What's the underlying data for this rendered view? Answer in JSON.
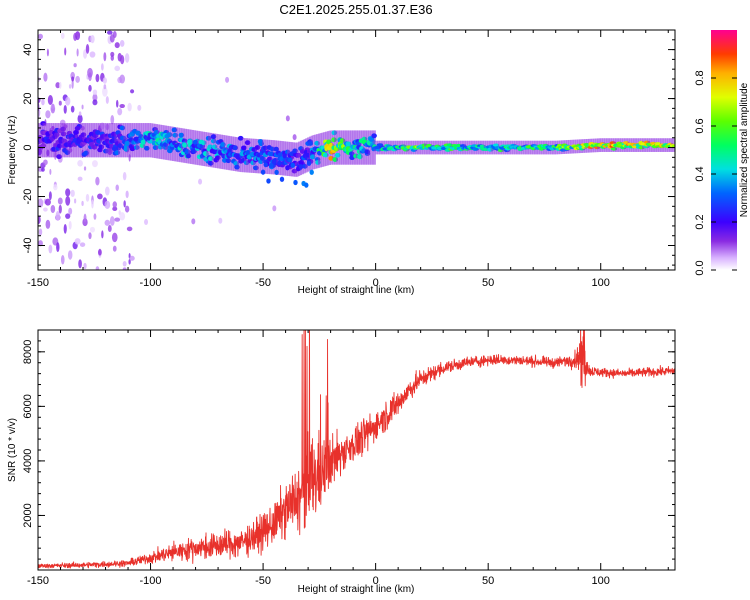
{
  "title": "C2E1.2025.255.01.37.E36",
  "chart_data": [
    {
      "type": "heatmap",
      "name": "spectrogram",
      "xlabel": "Height of straight line (km)",
      "ylabel": "Frequency (Hz)",
      "xlim": [
        -150,
        133
      ],
      "ylim": [
        -50,
        48
      ],
      "xticks": [
        -150,
        -100,
        -50,
        0,
        50,
        100
      ],
      "xtick_labels": [
        "-150",
        "-100",
        "-50",
        "0",
        "50",
        "100"
      ],
      "yticks": [
        -40,
        -20,
        0,
        20,
        40
      ],
      "ytick_labels": [
        "-40",
        "-20",
        "0",
        "20",
        "40"
      ],
      "ridge": {
        "x": [
          -150,
          -120,
          -100,
          -80,
          -60,
          -45,
          -35,
          -28,
          -20,
          -10,
          0,
          20,
          50,
          80,
          100,
          133
        ],
        "freq": [
          3,
          3,
          3,
          0,
          -3,
          -4,
          -5,
          -2,
          0,
          0,
          0,
          0,
          0,
          0,
          1,
          1
        ],
        "peak_amplitude": [
          0.25,
          0.3,
          0.5,
          0.45,
          0.4,
          0.35,
          0.3,
          0.35,
          0.9,
          0.55,
          0.5,
          0.7,
          0.55,
          0.65,
          0.95,
          0.8
        ]
      },
      "colorbar": {
        "label": "Normalized spectral amplitude",
        "range": [
          0,
          1
        ],
        "ticks": [
          0.0,
          0.2,
          0.4,
          0.6,
          0.8
        ],
        "tick_labels": [
          "0.0",
          "0.2",
          "0.4",
          "0.6",
          "0.8"
        ]
      }
    },
    {
      "type": "line",
      "name": "snr",
      "xlabel": "Height of straight line (km)",
      "ylabel": "SNR (10 * v/v)",
      "xlim": [
        -150,
        133
      ],
      "ylim": [
        0,
        8800
      ],
      "xticks": [
        -150,
        -100,
        -50,
        0,
        50,
        100
      ],
      "xtick_labels": [
        "-150",
        "-100",
        "-50",
        "0",
        "50",
        "100"
      ],
      "yticks": [
        2000,
        4000,
        6000,
        8000
      ],
      "ytick_labels": [
        "2000",
        "4000",
        "6000",
        "8000"
      ],
      "color": "#e8312b",
      "series": [
        {
          "name": "SNR",
          "x": [
            -150,
            -130,
            -110,
            -100,
            -90,
            -80,
            -70,
            -60,
            -50,
            -45,
            -40,
            -35,
            -30,
            -28,
            -25,
            -22,
            -20,
            -15,
            -10,
            -5,
            0,
            5,
            10,
            15,
            20,
            25,
            30,
            40,
            50,
            60,
            70,
            80,
            88,
            92,
            95,
            100,
            110,
            120,
            133
          ],
          "y": [
            150,
            180,
            250,
            450,
            650,
            800,
            900,
            1000,
            1400,
            1700,
            2200,
            2600,
            3100,
            3300,
            3500,
            3700,
            4000,
            4300,
            4600,
            4900,
            5300,
            5700,
            6100,
            6600,
            7000,
            7200,
            7400,
            7600,
            7700,
            7700,
            7650,
            7600,
            7700,
            7900,
            7300,
            7250,
            7200,
            7250,
            7300
          ],
          "spike_amplitude": [
            100,
            120,
            150,
            250,
            400,
            500,
            600,
            650,
            800,
            900,
            1200,
            1400,
            2600,
            2000,
            1800,
            1500,
            1100,
            900,
            800,
            800,
            700,
            650,
            600,
            500,
            400,
            350,
            300,
            250,
            250,
            220,
            220,
            220,
            300,
            900,
            250,
            200,
            200,
            200,
            200
          ]
        }
      ]
    }
  ]
}
